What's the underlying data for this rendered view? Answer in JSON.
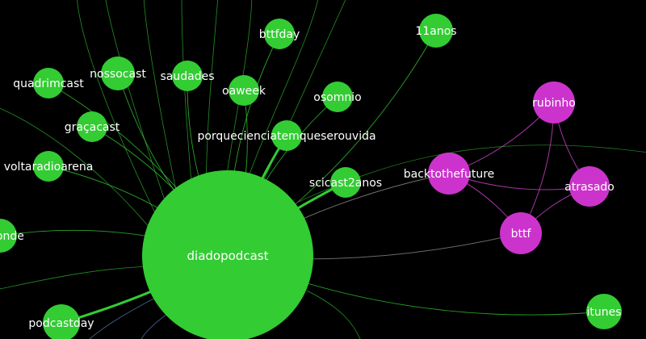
{
  "colors": {
    "background": "#000000",
    "green_node": "#33cc33",
    "purple_node": "#cc33cc",
    "green_edge": "#33cc33",
    "purple_edge": "#cc44cc",
    "gray_edge": "#999999",
    "label": "#ffffff"
  },
  "nodes": [
    {
      "id": "diadopodcast",
      "label": "diadopodcast",
      "group": "green"
    },
    {
      "id": "bttfday",
      "label": "bttfday",
      "group": "green"
    },
    {
      "id": "11anos",
      "label": "11anos",
      "group": "green"
    },
    {
      "id": "nossocast",
      "label": "nossocast",
      "group": "green"
    },
    {
      "id": "quadrimcast",
      "label": "quadrimcast",
      "group": "green"
    },
    {
      "id": "saudades",
      "label": "saudades",
      "group": "green"
    },
    {
      "id": "oaweek",
      "label": "oaweek",
      "group": "green"
    },
    {
      "id": "osomnio",
      "label": "osomnio",
      "group": "green"
    },
    {
      "id": "gracacast",
      "label": "graçacast",
      "group": "green"
    },
    {
      "id": "porquecienciatemqueserouvida",
      "label": "porquecienciatemqueserouvida",
      "group": "green"
    },
    {
      "id": "voltaradioarena",
      "label": "voltaradioarena",
      "group": "green"
    },
    {
      "id": "scicast2anos",
      "label": "scicast2anos",
      "group": "green"
    },
    {
      "id": "esponde",
      "label": "esponde",
      "group": "green"
    },
    {
      "id": "podcastday",
      "label": "podcastday",
      "group": "green"
    },
    {
      "id": "itunes",
      "label": "itunes",
      "group": "green"
    },
    {
      "id": "rubinho",
      "label": "rubinho",
      "group": "purple"
    },
    {
      "id": "backtothefuture",
      "label": "backtothefuture",
      "group": "purple"
    },
    {
      "id": "atrasado",
      "label": "atrasado",
      "group": "purple"
    },
    {
      "id": "bttf",
      "label": "bttf",
      "group": "purple"
    }
  ],
  "edges": [
    {
      "source": "diadopodcast",
      "target": "bttfday",
      "type": "green"
    },
    {
      "source": "diadopodcast",
      "target": "11anos",
      "type": "green"
    },
    {
      "source": "diadopodcast",
      "target": "nossocast",
      "type": "green"
    },
    {
      "source": "diadopodcast",
      "target": "quadrimcast",
      "type": "green"
    },
    {
      "source": "diadopodcast",
      "target": "saudades",
      "type": "green"
    },
    {
      "source": "diadopodcast",
      "target": "oaweek",
      "type": "green"
    },
    {
      "source": "diadopodcast",
      "target": "osomnio",
      "type": "green"
    },
    {
      "source": "diadopodcast",
      "target": "gracacast",
      "type": "green"
    },
    {
      "source": "diadopodcast",
      "target": "porquecienciatemqueserouvida",
      "type": "green-thick"
    },
    {
      "source": "diadopodcast",
      "target": "voltaradioarena",
      "type": "green"
    },
    {
      "source": "diadopodcast",
      "target": "scicast2anos",
      "type": "green-thick"
    },
    {
      "source": "diadopodcast",
      "target": "esponde",
      "type": "green"
    },
    {
      "source": "diadopodcast",
      "target": "podcastday",
      "type": "green-thick"
    },
    {
      "source": "diadopodcast",
      "target": "itunes",
      "type": "green"
    },
    {
      "source": "diadopodcast",
      "target": "backtothefuture",
      "type": "gray"
    },
    {
      "source": "diadopodcast",
      "target": "bttf",
      "type": "gray"
    },
    {
      "source": "rubinho",
      "target": "backtothefuture",
      "type": "purple"
    },
    {
      "source": "rubinho",
      "target": "atrasado",
      "type": "purple"
    },
    {
      "source": "rubinho",
      "target": "bttf",
      "type": "purple"
    },
    {
      "source": "backtothefuture",
      "target": "atrasado",
      "type": "purple"
    },
    {
      "source": "backtothefuture",
      "target": "bttf",
      "type": "purple"
    },
    {
      "source": "atrasado",
      "target": "bttf",
      "type": "purple"
    }
  ]
}
